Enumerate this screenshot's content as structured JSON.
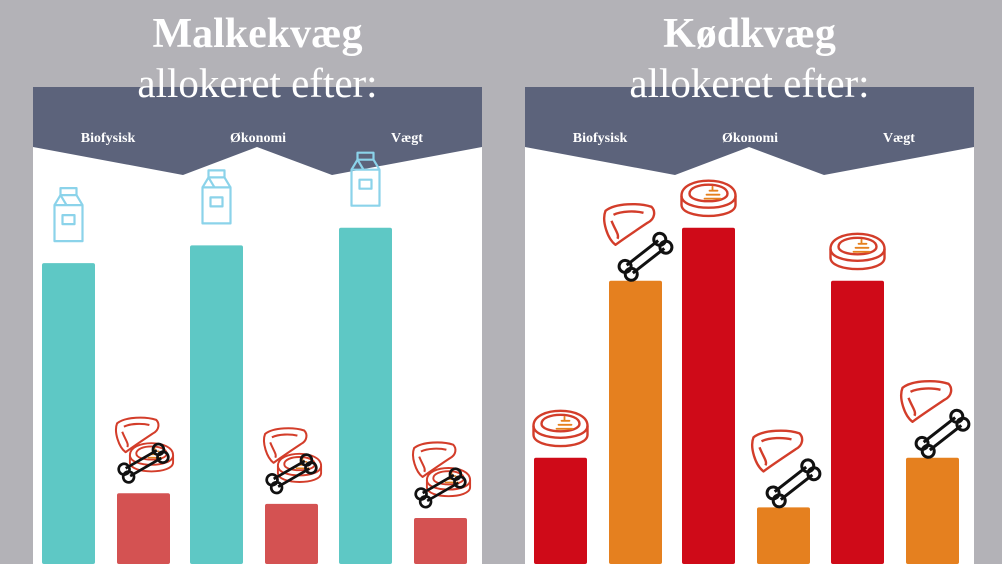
{
  "panels": [
    {
      "title": "Malkekvæg",
      "subtitle": "allokeret efter:",
      "sections": [
        "Biofysisk",
        "Økonomi",
        "Vægt"
      ]
    },
    {
      "title": "Kødkvæg",
      "subtitle": "allokeret efter:",
      "sections": [
        "Biofysisk",
        "Økonomi",
        "Vægt"
      ]
    }
  ],
  "colors": {
    "background": "#b3b2b7",
    "header": "#5c637b",
    "milk": "#5ec8c5",
    "meat_dairy": "#d45252",
    "meat_red": "#cf0a18",
    "meat_orange": "#e5801f",
    "icon_milk": "#8bd3ea",
    "icon_meat": "#d33d2a"
  },
  "chart_data": [
    {
      "type": "bar",
      "categories": [
        "Biofysisk",
        "Økonomi",
        "Vægt"
      ],
      "ylim": [
        0,
        100
      ],
      "series": [
        {
          "icon": "milk-carton-icon",
          "color": "#5ec8c5",
          "values": [
            85,
            90,
            95
          ]
        },
        {
          "icon": "meat-icon",
          "color": "#d45252",
          "values": [
            20,
            17,
            13
          ]
        }
      ]
    },
    {
      "type": "bar",
      "categories": [
        "Biofysisk",
        "Økonomi",
        "Vægt"
      ],
      "ylim": [
        0,
        100
      ],
      "series": [
        {
          "icon": "steak-icon",
          "color": "#cf0a18",
          "values": [
            30,
            95,
            80
          ]
        },
        {
          "icon": "liver-bone-icon",
          "color": "#e5801f",
          "values": [
            80,
            16,
            30
          ]
        }
      ]
    }
  ]
}
